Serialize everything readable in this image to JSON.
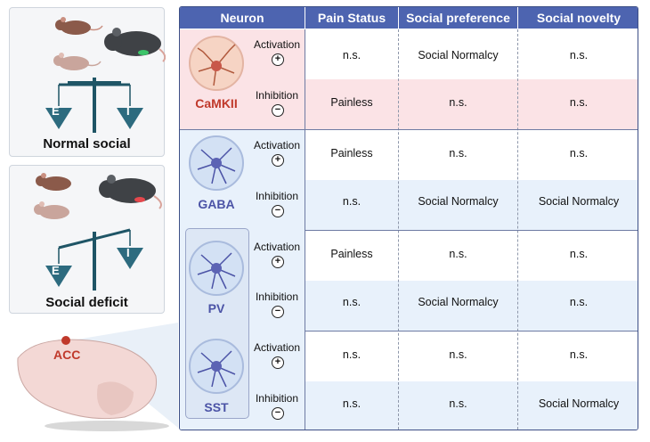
{
  "left": {
    "top_caption": "Normal social",
    "bottom_caption": "Social deficit",
    "scale_left": "E",
    "scale_right": "I",
    "region": "ACC"
  },
  "table": {
    "headers": [
      "Neuron",
      "Pain Status",
      "Social preference",
      "Social novelty"
    ],
    "groups": [
      {
        "name": "CaMKII",
        "color": "#c0392b",
        "rows": [
          {
            "label": "Activation",
            "sign": "+",
            "pain": "n.s.",
            "pref": "Social Normalcy",
            "nov": "n.s."
          },
          {
            "label": "Inhibition",
            "sign": "−",
            "pain": "Painless",
            "pref": "n.s.",
            "nov": "n.s."
          }
        ]
      },
      {
        "name": "GABA",
        "color": "#4b53a6",
        "rows": [
          {
            "label": "Activation",
            "sign": "+",
            "pain": "Painless",
            "pref": "n.s.",
            "nov": "n.s."
          },
          {
            "label": "Inhibition",
            "sign": "−",
            "pain": "n.s.",
            "pref": "Social Normalcy",
            "nov": "Social Normalcy"
          }
        ]
      },
      {
        "name": "PV",
        "color": "#4b53a6",
        "rows": [
          {
            "label": "Activation",
            "sign": "+",
            "pain": "Painless",
            "pref": "n.s.",
            "nov": "n.s."
          },
          {
            "label": "Inhibition",
            "sign": "−",
            "pain": "n.s.",
            "pref": "Social Normalcy",
            "nov": "n.s."
          }
        ]
      },
      {
        "name": "SST",
        "color": "#4b53a6",
        "rows": [
          {
            "label": "Activation",
            "sign": "+",
            "pain": "n.s.",
            "pref": "n.s.",
            "nov": "n.s."
          },
          {
            "label": "Inhibition",
            "sign": "−",
            "pain": "n.s.",
            "pref": "n.s.",
            "nov": "Social Normalcy"
          }
        ]
      }
    ]
  },
  "colors": {
    "header": "#4d64b0",
    "camkii_row_alt": "#fbe3e6",
    "gaba_row_alt": "#e8f1fb",
    "border": "#3d4f86"
  }
}
